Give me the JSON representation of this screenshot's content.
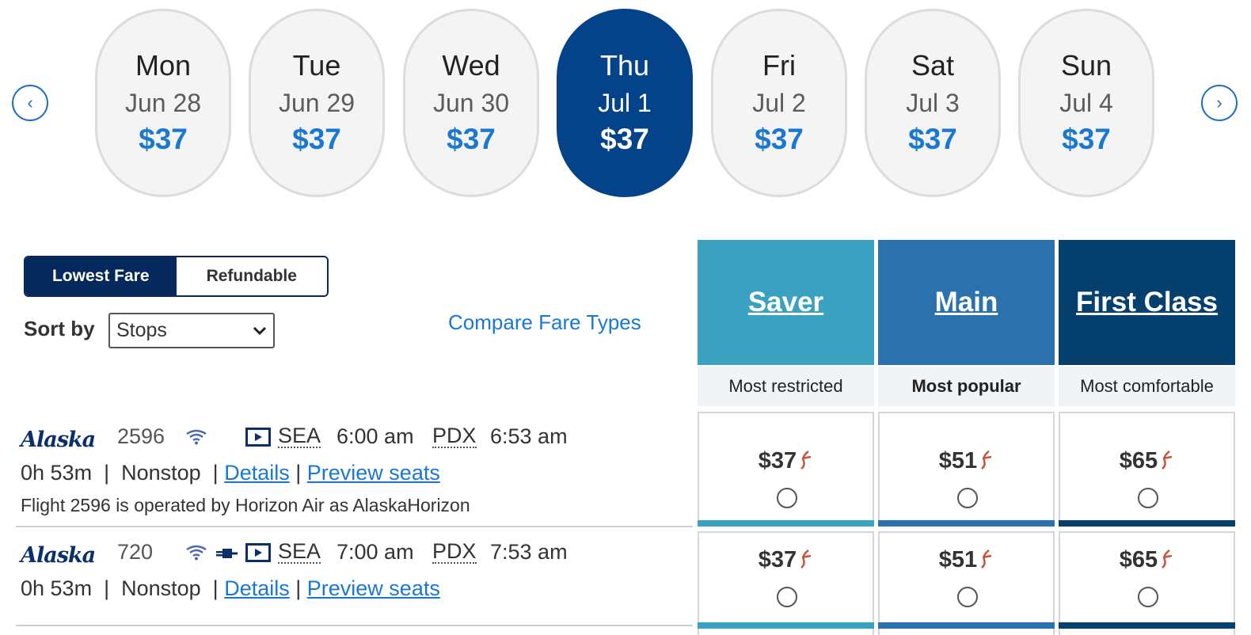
{
  "colors": {
    "accent": "#1b78d0",
    "selected_date": "#04438a",
    "saver": "#3aa1c1",
    "main": "#2a71ad",
    "first": "#06406e",
    "toggle_on": "#05295c"
  },
  "dates": [
    {
      "dow": "Mon",
      "date": "Jun 28",
      "price": "$37",
      "selected": false
    },
    {
      "dow": "Tue",
      "date": "Jun 29",
      "price": "$37",
      "selected": false
    },
    {
      "dow": "Wed",
      "date": "Jun 30",
      "price": "$37",
      "selected": false
    },
    {
      "dow": "Thu",
      "date": "Jul 1",
      "price": "$37",
      "selected": true
    },
    {
      "dow": "Fri",
      "date": "Jul 2",
      "price": "$37",
      "selected": false
    },
    {
      "dow": "Sat",
      "date": "Jul 3",
      "price": "$37",
      "selected": false
    },
    {
      "dow": "Sun",
      "date": "Jul 4",
      "price": "$37",
      "selected": false
    }
  ],
  "nav": {
    "prev_icon": "chevron-left-icon",
    "next_icon": "chevron-right-icon",
    "prev_glyph": "‹",
    "next_glyph": "›"
  },
  "filters": {
    "lowest_fare": "Lowest Fare",
    "refundable": "Refundable",
    "sort_label": "Sort by",
    "sort_value": "Stops",
    "compare_link": "Compare Fare Types"
  },
  "fare_types": [
    {
      "name": "Saver",
      "subtitle": "Most restricted"
    },
    {
      "name": "Main",
      "subtitle": "Most popular"
    },
    {
      "name": "First Class",
      "subtitle": "Most comfortable"
    }
  ],
  "flights": [
    {
      "airline": "Alaska",
      "number": "2596",
      "amenities": [
        "wifi-icon",
        "tv-icon"
      ],
      "origin": "SEA",
      "depart": "6:00 am",
      "dest": "PDX",
      "arrive": "6:53 am",
      "duration": "0h 53m",
      "stops": "Nonstop",
      "details": "Details",
      "preview": "Preview seats",
      "note": "Flight 2596 is operated by Horizon Air as AlaskaHorizon",
      "fares": [
        "$37",
        "$51",
        "$65"
      ]
    },
    {
      "airline": "Alaska",
      "number": "720",
      "amenities": [
        "wifi-icon",
        "power-plug-icon",
        "tv-icon"
      ],
      "origin": "SEA",
      "depart": "7:00 am",
      "dest": "PDX",
      "arrive": "7:53 am",
      "duration": "0h 53m",
      "stops": "Nonstop",
      "details": "Details",
      "preview": "Preview seats",
      "fares": [
        "$37",
        "$51",
        "$65"
      ]
    }
  ]
}
